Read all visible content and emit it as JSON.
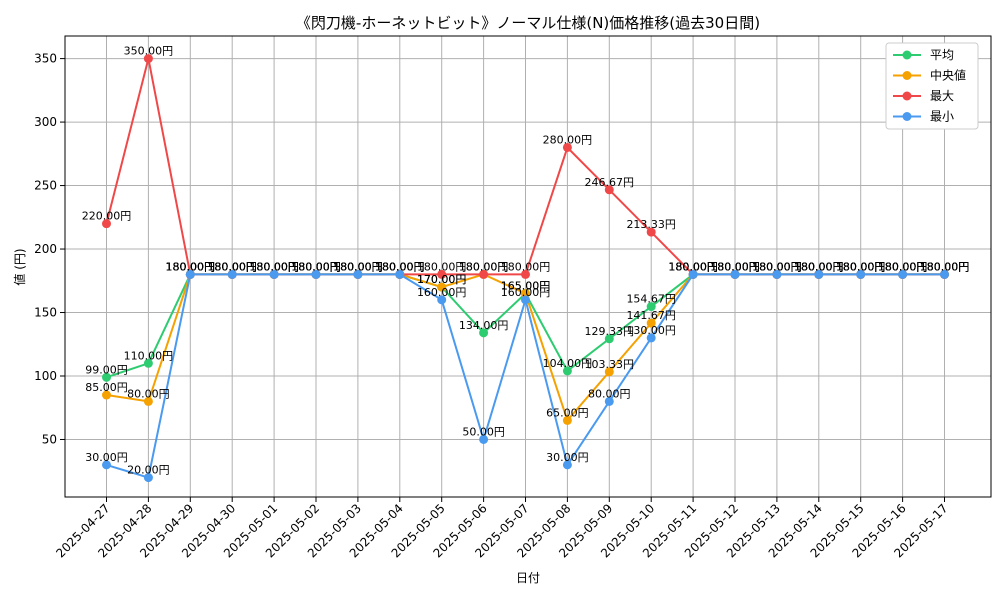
{
  "chart_data": {
    "type": "line",
    "title": "《閃刀機-ホーネットビット》ノーマル仕様(N)価格推移(過去30日間)",
    "xlabel": "日付",
    "ylabel": "値 (円)",
    "ylim": [
      10,
      365
    ],
    "yticks": [
      50,
      100,
      150,
      200,
      250,
      300,
      350
    ],
    "grid": true,
    "legend_position": "top-right",
    "label_suffix": "円",
    "categories": [
      "2025-04-27",
      "2025-04-28",
      "2025-04-29",
      "2025-04-30",
      "2025-05-01",
      "2025-05-02",
      "2025-05-03",
      "2025-05-04",
      "2025-05-05",
      "2025-05-06",
      "2025-05-07",
      "2025-05-08",
      "2025-05-09",
      "2025-05-10",
      "2025-05-11",
      "2025-05-12",
      "2025-05-13",
      "2025-05-14",
      "2025-05-15",
      "2025-05-16",
      "2025-05-17"
    ],
    "series": [
      {
        "name": "平均",
        "color": "#2ecc71",
        "values": [
          99,
          110,
          180,
          180,
          180,
          180,
          180,
          180,
          170,
          134,
          165,
          104,
          129.33,
          154.67,
          180,
          180,
          180,
          180,
          180,
          180,
          180
        ]
      },
      {
        "name": "中央値",
        "color": "#f5a100",
        "values": [
          85,
          80,
          180,
          180,
          180,
          180,
          180,
          180,
          170,
          180,
          165,
          65,
          103.33,
          141.67,
          180,
          180,
          180,
          180,
          180,
          180,
          180
        ]
      },
      {
        "name": "最大",
        "color": "#f04848",
        "values": [
          220,
          350,
          180,
          180,
          180,
          180,
          180,
          180,
          180,
          180,
          180,
          280,
          246.67,
          213.33,
          180,
          180,
          180,
          180,
          180,
          180,
          180
        ]
      },
      {
        "name": "最小",
        "color": "#4a9af0",
        "values": [
          30,
          20,
          180,
          180,
          180,
          180,
          180,
          180,
          160,
          50,
          160,
          30,
          80,
          130,
          180,
          180,
          180,
          180,
          180,
          180,
          180
        ]
      }
    ]
  }
}
